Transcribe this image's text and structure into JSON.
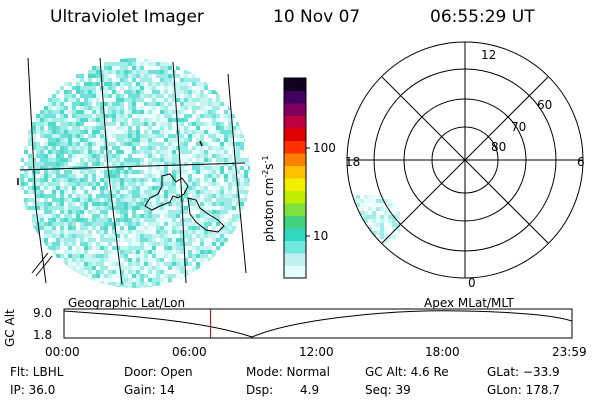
{
  "header": {
    "instrument": "Ultraviolet Imager",
    "date": "10 Nov 07",
    "time": "06:55:29 UT"
  },
  "colorbar": {
    "unit_label": "photon cm",
    "unit_exp1": "-2",
    "unit_s": "s",
    "unit_exp2": "-1",
    "ticks": [
      "100",
      "10"
    ],
    "colors": [
      "#e6ffff",
      "#c0f0f0",
      "#70e8e0",
      "#30d8c0",
      "#40d080",
      "#80e040",
      "#c0f000",
      "#f0f000",
      "#ffc000",
      "#ff8000",
      "#ff3000",
      "#e00000",
      "#c00040",
      "#800060",
      "#400060",
      "#100020"
    ]
  },
  "polar": {
    "mlt_labels": {
      "top": "12",
      "left": "18",
      "right": "6",
      "bottom": "0"
    },
    "lat_labels": [
      "60",
      "70",
      "80"
    ]
  },
  "geo_panel": {
    "label": "Geographic Lat/Lon"
  },
  "apex_panel": {
    "label": "Apex  MLat/MLT"
  },
  "timeline": {
    "ylabel": "GC Alt",
    "yticks": [
      "9.0",
      "1.8"
    ],
    "xticks": [
      "00:00",
      "06:00",
      "12:00",
      "18:00",
      "23:59"
    ],
    "current_time_frac": 0.2885,
    "marker_color": "#cc0000"
  },
  "footer": {
    "flt": "Flt: LBHL",
    "ip": "IP: 36.0",
    "door": "Door: Open",
    "gain": "Gain: 14",
    "mode": "Mode: Normal",
    "dsp_label": "Dsp:",
    "dsp_value": "4.9",
    "gc_alt": "GC Alt: 4.6 Re",
    "seq": "Seq: 39",
    "glat": "GLat: −33.9",
    "glon": "GLon: 178.7"
  }
}
